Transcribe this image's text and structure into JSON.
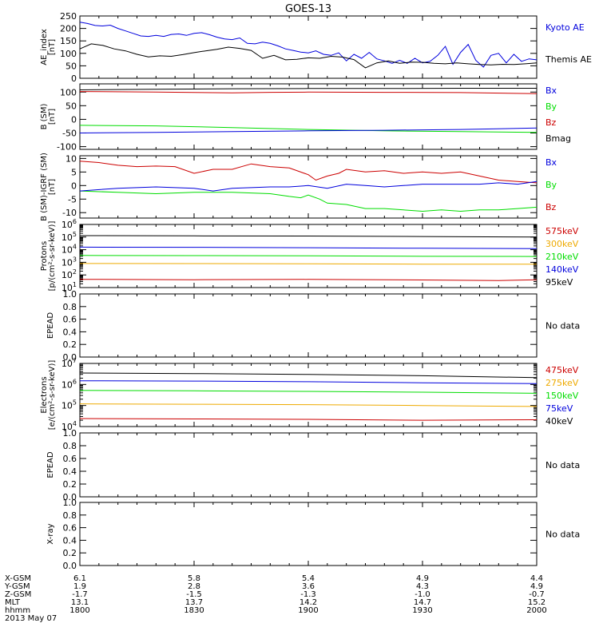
{
  "title": "GOES-13",
  "colors": {
    "black": "#000000",
    "blue": "#0000dd",
    "red": "#cc0000",
    "green": "#00dd00",
    "orange": "#eeaa00"
  },
  "chart_data": [
    {
      "type": "line",
      "ylabel": [
        "AE_index",
        "[nT]"
      ],
      "ylim": [
        0,
        250
      ],
      "yticks": [
        "0",
        "50",
        "100",
        "150",
        "200",
        "250"
      ],
      "legend": [
        {
          "name": "Kyoto AE",
          "color": "blue"
        },
        {
          "name": "Themis AE",
          "color": "black"
        }
      ],
      "series": [
        {
          "name": "Kyoto AE",
          "color": "blue",
          "x": [
            0,
            2,
            4,
            6,
            8,
            10,
            12,
            14,
            16,
            18,
            20,
            22,
            24,
            26,
            28,
            30,
            32,
            34,
            36,
            38,
            40,
            42,
            44,
            46,
            48,
            50,
            52,
            54,
            56,
            58,
            60,
            62,
            64,
            66,
            68,
            70,
            72,
            74,
            76,
            78,
            80,
            82,
            84,
            86,
            88,
            90,
            92,
            94,
            96,
            98,
            100,
            102,
            104,
            106,
            108,
            110,
            112,
            114,
            116,
            118,
            120
          ],
          "y": [
            225,
            220,
            212,
            210,
            213,
            200,
            190,
            180,
            170,
            168,
            172,
            168,
            176,
            178,
            172,
            180,
            183,
            175,
            165,
            158,
            155,
            162,
            140,
            138,
            145,
            140,
            130,
            118,
            112,
            105,
            102,
            110,
            96,
            92,
            102,
            70,
            96,
            80,
            104,
            78,
            70,
            60,
            72,
            60,
            80,
            62,
            68,
            92,
            128,
            56,
            104,
            136,
            72,
            45,
            92,
            100,
            62,
            96,
            68,
            78,
            74
          ]
        },
        {
          "name": "Themis AE",
          "color": "black",
          "x": [
            0,
            3,
            6,
            9,
            12,
            15,
            18,
            21,
            24,
            27,
            30,
            33,
            36,
            39,
            42,
            45,
            48,
            51,
            54,
            57,
            60,
            63,
            66,
            69,
            72,
            75,
            78,
            81,
            84,
            87,
            90,
            93,
            96,
            99,
            102,
            105,
            108,
            111,
            114,
            117,
            120
          ],
          "y": [
            118,
            138,
            132,
            118,
            110,
            96,
            86,
            90,
            88,
            95,
            103,
            110,
            116,
            125,
            120,
            112,
            80,
            92,
            74,
            76,
            82,
            80,
            88,
            85,
            75,
            42,
            62,
            70,
            60,
            65,
            64,
            60,
            58,
            62,
            58,
            55,
            54,
            56,
            55,
            58,
            62
          ]
        }
      ]
    },
    {
      "type": "line",
      "ylabel": [
        "B (SM)",
        "[nT]"
      ],
      "ylim": [
        -110,
        130
      ],
      "yticks": [
        "-100",
        "-50",
        "0",
        "50",
        "100"
      ],
      "legend": [
        {
          "name": "Bx",
          "color": "blue"
        },
        {
          "name": "By",
          "color": "green"
        },
        {
          "name": "Bz",
          "color": "red"
        },
        {
          "name": "Bmag",
          "color": "black"
        }
      ],
      "series": [
        {
          "name": "Bmag",
          "color": "black",
          "x": [
            0,
            20,
            40,
            60,
            80,
            100,
            120
          ],
          "y": [
            108,
            110,
            112,
            113,
            113,
            114,
            114
          ]
        },
        {
          "name": "Bz",
          "color": "red",
          "x": [
            0,
            20,
            40,
            50,
            60,
            80,
            100,
            120
          ],
          "y": [
            102,
            100,
            97,
            99,
            100,
            99,
            98,
            94
          ]
        },
        {
          "name": "By",
          "color": "green",
          "x": [
            0,
            20,
            40,
            60,
            80,
            100,
            120
          ],
          "y": [
            -22,
            -24,
            -30,
            -37,
            -42,
            -45,
            -48
          ]
        },
        {
          "name": "Bx",
          "color": "blue",
          "x": [
            0,
            20,
            40,
            60,
            80,
            100,
            120
          ],
          "y": [
            -50,
            -48,
            -45,
            -42,
            -40,
            -37,
            -32
          ]
        }
      ]
    },
    {
      "type": "line",
      "ylabel": [
        "B (SM)-IGRF (SM)",
        "[nT]"
      ],
      "ylim": [
        -12,
        11
      ],
      "yticks": [
        "-10",
        "-5",
        "0",
        "5",
        "10"
      ],
      "legend": [
        {
          "name": "Bx",
          "color": "blue"
        },
        {
          "name": "By",
          "color": "green"
        },
        {
          "name": "Bz",
          "color": "red"
        }
      ],
      "series": [
        {
          "name": "Bz",
          "color": "red",
          "x": [
            0,
            5,
            10,
            15,
            20,
            25,
            30,
            35,
            40,
            45,
            50,
            55,
            60,
            62,
            65,
            68,
            70,
            75,
            80,
            85,
            90,
            95,
            100,
            105,
            110,
            115,
            120
          ],
          "y": [
            9,
            8.5,
            7.5,
            7,
            7.2,
            7,
            4.5,
            6,
            6,
            8,
            7,
            6.5,
            4,
            2,
            3.5,
            4.5,
            6,
            5,
            5.5,
            4.5,
            5,
            4.5,
            5,
            3.5,
            2,
            1.5,
            1
          ]
        },
        {
          "name": "By",
          "color": "green",
          "x": [
            0,
            10,
            20,
            30,
            40,
            50,
            55,
            58,
            60,
            63,
            65,
            70,
            75,
            80,
            85,
            90,
            95,
            100,
            105,
            110,
            115,
            120
          ],
          "y": [
            -2,
            -2.5,
            -3,
            -2.5,
            -2.5,
            -3,
            -4,
            -4.5,
            -3.5,
            -5,
            -6.5,
            -7,
            -8.5,
            -8.5,
            -9,
            -9.5,
            -9,
            -9.5,
            -9,
            -9,
            -8.5,
            -8
          ]
        },
        {
          "name": "Bx",
          "color": "blue",
          "x": [
            0,
            10,
            20,
            30,
            35,
            40,
            50,
            55,
            60,
            65,
            70,
            75,
            80,
            85,
            90,
            95,
            100,
            105,
            110,
            115,
            120
          ],
          "y": [
            -2,
            -1,
            -0.5,
            -1,
            -2,
            -1,
            -0.5,
            -0.5,
            0,
            -1,
            0.5,
            0,
            -0.5,
            0,
            0.5,
            0.5,
            0.5,
            0.5,
            1,
            0.5,
            1.5
          ]
        }
      ]
    },
    {
      "type": "line",
      "ylabel": [
        "Protons",
        "[p/(cm²-s-sr-keV)]"
      ],
      "yscale": "log",
      "ylim": [
        10,
        1000000
      ],
      "yticks": [
        {
          "base": "10",
          "exp": "1"
        },
        {
          "base": "10",
          "exp": "2"
        },
        {
          "base": "10",
          "exp": "3"
        },
        {
          "base": "10",
          "exp": "4"
        },
        {
          "base": "10",
          "exp": "5"
        },
        {
          "base": "10",
          "exp": "6"
        }
      ],
      "legend": [
        {
          "name": "575keV",
          "color": "red"
        },
        {
          "name": "300keV",
          "color": "orange"
        },
        {
          "name": "210keV",
          "color": "green"
        },
        {
          "name": "140keV",
          "color": "blue"
        },
        {
          "name": "95keV",
          "color": "black"
        }
      ],
      "series": [
        {
          "name": "95keV",
          "color": "black",
          "x": [
            0,
            30,
            60,
            90,
            120
          ],
          "y": [
            130000,
            125000,
            120000,
            110000,
            100000
          ]
        },
        {
          "name": "140keV",
          "color": "blue",
          "x": [
            0,
            30,
            60,
            90,
            120
          ],
          "y": [
            16000,
            15500,
            14500,
            13000,
            12000
          ]
        },
        {
          "name": "210keV",
          "color": "green",
          "x": [
            0,
            30,
            60,
            90,
            120
          ],
          "y": [
            3500,
            3400,
            3300,
            3000,
            2900
          ]
        },
        {
          "name": "300keV",
          "color": "orange",
          "x": [
            0,
            30,
            60,
            90,
            120
          ],
          "y": [
            800,
            790,
            760,
            720,
            700
          ]
        },
        {
          "name": "575keV",
          "color": "red",
          "x": [
            0,
            30,
            60,
            90,
            110,
            120
          ],
          "y": [
            45,
            42,
            44,
            40,
            36,
            42
          ]
        }
      ]
    },
    {
      "type": "line",
      "ylabel": [
        "EPEAD"
      ],
      "ylim": [
        0,
        1
      ],
      "yticks": [
        "0.0",
        "0.2",
        "0.4",
        "0.6",
        "0.8",
        "1.0"
      ],
      "nodata": "No data",
      "series": []
    },
    {
      "type": "line",
      "ylabel": [
        "Electrons",
        "[e/(cm²-s-sr-keV)]"
      ],
      "yscale": "log",
      "ylim": [
        10000,
        10000000
      ],
      "yticks": [
        {
          "base": "10",
          "exp": "4"
        },
        {
          "base": "10",
          "exp": "5"
        },
        {
          "base": "10",
          "exp": "6"
        },
        {
          "base": "10",
          "exp": "7"
        }
      ],
      "legend": [
        {
          "name": "475keV",
          "color": "red"
        },
        {
          "name": "275keV",
          "color": "orange"
        },
        {
          "name": "150keV",
          "color": "green"
        },
        {
          "name": "75keV",
          "color": "blue"
        },
        {
          "name": "40keV",
          "color": "black"
        }
      ],
      "series": [
        {
          "name": "40keV",
          "color": "black",
          "x": [
            0,
            30,
            60,
            90,
            120
          ],
          "y": [
            3500000,
            3300000,
            3000000,
            2600000,
            2100000
          ]
        },
        {
          "name": "75keV",
          "color": "blue",
          "x": [
            0,
            30,
            60,
            90,
            120
          ],
          "y": [
            1500000,
            1450000,
            1350000,
            1200000,
            1100000
          ]
        },
        {
          "name": "150keV",
          "color": "green",
          "x": [
            0,
            30,
            60,
            90,
            120
          ],
          "y": [
            520000,
            500000,
            470000,
            430000,
            380000
          ]
        },
        {
          "name": "275keV",
          "color": "orange",
          "x": [
            0,
            30,
            60,
            90,
            120
          ],
          "y": [
            120000,
            115000,
            110000,
            100000,
            90000
          ]
        },
        {
          "name": "475keV",
          "color": "red",
          "x": [
            0,
            30,
            60,
            90,
            120
          ],
          "y": [
            24000,
            23000,
            22000,
            20000,
            21000
          ]
        }
      ]
    },
    {
      "type": "line",
      "ylabel": [
        "EPEAD"
      ],
      "ylim": [
        0,
        1
      ],
      "yticks": [
        "0.0",
        "0.2",
        "0.4",
        "0.6",
        "0.8",
        "1.0"
      ],
      "nodata": "No data",
      "series": []
    },
    {
      "type": "line",
      "ylabel": [
        "X-ray"
      ],
      "ylim": [
        0,
        1
      ],
      "yticks": [
        "0.0",
        "0.2",
        "0.4",
        "0.6",
        "0.8",
        "1.0"
      ],
      "nodata": "No data",
      "series": []
    }
  ],
  "footer": {
    "labels": [
      "X-GSM",
      "Y-GSM",
      "Z-GSM",
      "MLT",
      "hhmm",
      "2013 May 07"
    ],
    "columns": [
      [
        "6.1",
        "1.9",
        "-1.7",
        "13.1",
        "1800"
      ],
      [
        "5.8",
        "2.8",
        "-1.5",
        "13.7",
        "1830"
      ],
      [
        "5.4",
        "3.6",
        "-1.3",
        "14.2",
        "1900"
      ],
      [
        "4.9",
        "4.3",
        "-1.0",
        "14.7",
        "1930"
      ],
      [
        "4.4",
        "4.9",
        "-0.7",
        "15.2",
        "2000"
      ]
    ]
  }
}
